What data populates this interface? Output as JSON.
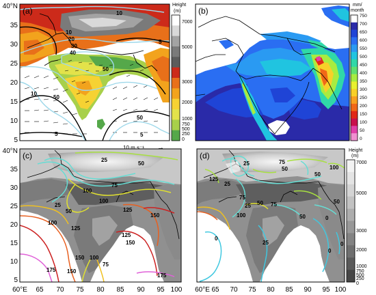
{
  "panels": {
    "a": {
      "label": "(a)",
      "y_ticks": [
        "40°N",
        "35",
        "30",
        "25",
        "20",
        "15",
        "10",
        "5"
      ],
      "contour_labels": [
        "10",
        "10",
        "20",
        "30",
        "40",
        "50",
        "5",
        "10",
        "50",
        "5",
        "50",
        "5"
      ],
      "wind_scale_label": "10 m s⁻¹",
      "wind_scale_arrow": "→",
      "colorbar": {
        "title_line1": "Height",
        "title_line2": "(m)",
        "ticks": [
          "7000",
          "5000",
          "3000",
          "2000",
          "1000",
          "750",
          "500",
          "250",
          "0"
        ],
        "colors": [
          "#ffffff",
          "#d9d9d9",
          "#a3a3a3",
          "#7a7a7a",
          "#5c5c5c",
          "#cc2a1a",
          "#e8701a",
          "#f2a31d",
          "#f6d233",
          "#e3e24a",
          "#a8d04a",
          "#55a84a"
        ]
      }
    },
    "b": {
      "label": "(b)",
      "colorbar": {
        "title_line1": "mm/",
        "title_line2": "month",
        "ticks": [
          "750",
          "700",
          "650",
          "600",
          "550",
          "500",
          "450",
          "400",
          "350",
          "300",
          "250",
          "200",
          "150",
          "100",
          "50",
          "0"
        ],
        "colors": [
          "#ffffff",
          "#2a2aa8",
          "#1f44d6",
          "#2a6ef2",
          "#2a9af2",
          "#20c4e0",
          "#30d8a8",
          "#60e070",
          "#a8ec40",
          "#e8f030",
          "#f8d028",
          "#f8a020",
          "#f06818",
          "#e02818",
          "#c8104c",
          "#e040a8",
          "#f090d0"
        ]
      }
    },
    "c": {
      "label": "(c)",
      "y_ticks": [
        "40°N",
        "35",
        "30",
        "25",
        "20",
        "15",
        "10",
        "5"
      ],
      "x_ticks": [
        "60°E",
        "65",
        "70",
        "75",
        "80",
        "85",
        "90",
        "95",
        "100"
      ],
      "contour_labels": [
        "25",
        "50",
        "75",
        "100",
        "25",
        "50",
        "100",
        "125",
        "150",
        "100",
        "125",
        "125",
        "150",
        "100",
        "175",
        "150",
        "175",
        "75",
        "150"
      ]
    },
    "d": {
      "label": "(d)",
      "x_ticks": [
        "60°E",
        "65",
        "70",
        "75",
        "80",
        "85",
        "90",
        "95",
        "100"
      ],
      "contour_labels": [
        "75",
        "100",
        "50",
        "25",
        "125",
        "25",
        "75",
        "25",
        "50",
        "50",
        "100",
        "75",
        "50",
        "0",
        "25",
        "0",
        "0",
        "0",
        "50"
      ],
      "colorbar": {
        "title_line1": "Height",
        "title_line2": "(m)",
        "ticks": [
          "7000",
          "5000",
          "3000",
          "2000",
          "1000",
          "750",
          "500",
          "250",
          "0"
        ],
        "colors": [
          "#f2f2f2",
          "#e4e4e4",
          "#d4d4d4",
          "#c2c2c2",
          "#adadad",
          "#989898",
          "#838383",
          "#6f6f6f",
          "#5a5a5a",
          "#464646"
        ]
      }
    }
  }
}
